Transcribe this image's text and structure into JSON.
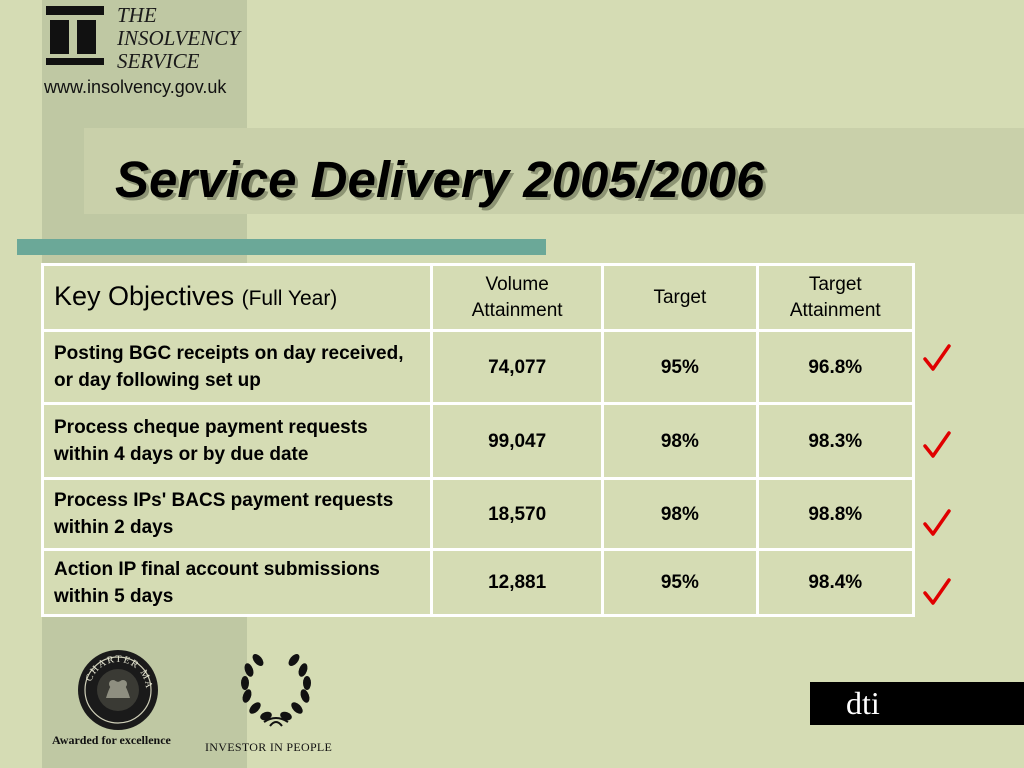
{
  "logo": {
    "line1": "THE",
    "line2": "INSOLVENCY",
    "line3": "SERVICE",
    "url": "www.insolvency.gov.uk"
  },
  "title": "Service Delivery 2005/2006",
  "table": {
    "headers": {
      "objectives": "Key Objectives",
      "objectives_sub": "(Full Year)",
      "volume": "Volume Attainment",
      "target": "Target",
      "target_attainment": "Target Attainment"
    },
    "rows": [
      {
        "objective": "Posting BGC receipts on day received, or day following set up",
        "volume": "74,077",
        "target": "95%",
        "attainment": "96.8%"
      },
      {
        "objective": "Process cheque payment requests within 4 days or by due date",
        "volume": "99,047",
        "target": "98%",
        "attainment": "98.3%"
      },
      {
        "objective": "Process IPs' BACS payment requests within 2 days",
        "volume": "18,570",
        "target": "98%",
        "attainment": "98.8%"
      },
      {
        "objective": "Action IP final account submissions within 5 days",
        "volume": "12,881",
        "target": "95%",
        "attainment": "98.4%"
      }
    ]
  },
  "checkmark_color": "#e00000",
  "footer": {
    "charter_caption": "Awarded for excellence",
    "charter_seal_text": "CHARTER MARK",
    "iip_caption": "INVESTOR IN PEOPLE",
    "dti_text": "dti"
  }
}
